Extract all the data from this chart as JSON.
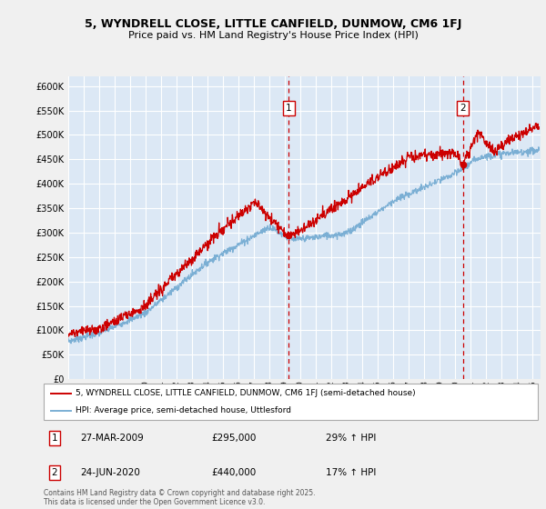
{
  "title": "5, WYNDRELL CLOSE, LITTLE CANFIELD, DUNMOW, CM6 1FJ",
  "subtitle": "Price paid vs. HM Land Registry's House Price Index (HPI)",
  "ylim": [
    0,
    620000
  ],
  "yticks": [
    0,
    50000,
    100000,
    150000,
    200000,
    250000,
    300000,
    350000,
    400000,
    450000,
    500000,
    550000,
    600000
  ],
  "xlim_start": 1995.0,
  "xlim_end": 2025.5,
  "fig_bg": "#f0f0f0",
  "plot_bg": "#dce8f5",
  "grid_color": "#ffffff",
  "red_color": "#cc0000",
  "blue_color": "#7bafd4",
  "marker1_x": 2009.23,
  "marker2_x": 2020.48,
  "marker1_y": 295000,
  "marker2_y": 440000,
  "marker1_date": "27-MAR-2009",
  "marker1_price": "£295,000",
  "marker1_pct": "29% ↑ HPI",
  "marker2_date": "24-JUN-2020",
  "marker2_price": "£440,000",
  "marker2_pct": "17% ↑ HPI",
  "legend_label1": "5, WYNDRELL CLOSE, LITTLE CANFIELD, DUNMOW, CM6 1FJ (semi-detached house)",
  "legend_label2": "HPI: Average price, semi-detached house, Uttlesford",
  "footer": "Contains HM Land Registry data © Crown copyright and database right 2025.\nThis data is licensed under the Open Government Licence v3.0."
}
